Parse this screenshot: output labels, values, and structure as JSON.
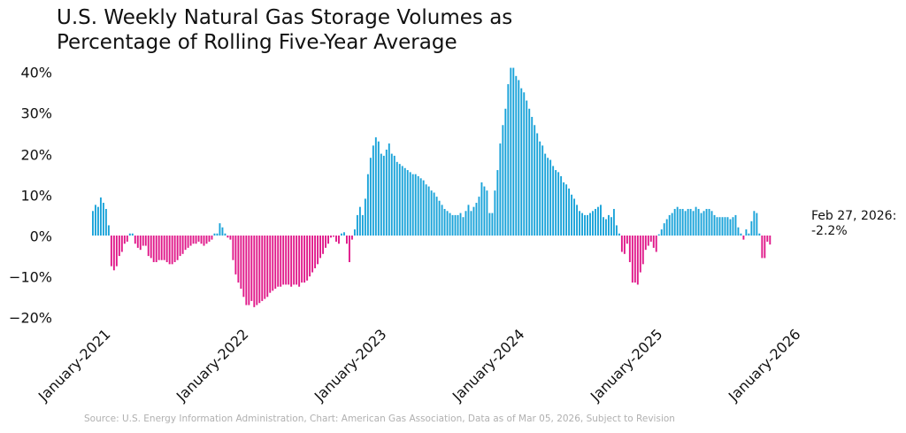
{
  "chart_data": {
    "type": "bar",
    "title": "U.S. Weekly Natural Gas Storage Volumes as Percentage of Rolling Five-Year Average",
    "title_lines": [
      "U.S. Weekly Natural Gas Storage Volumes as",
      "Percentage of Rolling Five-Year Average"
    ],
    "xlabel": "",
    "ylabel": "",
    "ylim": [
      -20,
      40
    ],
    "y_ticks": [
      40,
      30,
      20,
      10,
      0,
      -10,
      -20
    ],
    "y_tick_labels": [
      "40%",
      "30%",
      "20%",
      "10%",
      "0%",
      "−10%",
      "−20%"
    ],
    "x_tick_labels": [
      "January-2021",
      "January-2022",
      "January-2023",
      "January-2024",
      "January-2025",
      "January-2026"
    ],
    "x_start": "2021-01-01",
    "x_end": "2026-02-27",
    "frequency": "weekly",
    "grid": false,
    "colors": {
      "positive": "#1aa3d9",
      "negative": "#e0198a"
    },
    "series": [
      {
        "name": "Storage vs 5-yr avg (%)",
        "values": [
          6,
          7.5,
          7,
          9.3,
          8,
          6.5,
          2.5,
          -7.5,
          -8.5,
          -7.5,
          -5,
          -4,
          -2,
          -1.5,
          0.5,
          0.5,
          -2,
          -3,
          -3.5,
          -2.5,
          -2.5,
          -5,
          -5.5,
          -6.5,
          -6.5,
          -6,
          -6,
          -6,
          -6.5,
          -7,
          -7,
          -6.5,
          -6,
          -5,
          -4.5,
          -3.5,
          -3,
          -2.5,
          -2,
          -2,
          -1.5,
          -2,
          -2.5,
          -2,
          -1.5,
          -1,
          0.5,
          0.5,
          3,
          2,
          0.5,
          -0.5,
          -1,
          -6,
          -9.5,
          -11.5,
          -13,
          -15,
          -17,
          -17,
          -16,
          -17.5,
          -17,
          -16.5,
          -16,
          -15.5,
          -15,
          -14,
          -13.5,
          -13,
          -12.5,
          -12.5,
          -12,
          -12,
          -12,
          -12.5,
          -12,
          -12,
          -12.5,
          -11.5,
          -11.5,
          -11,
          -10,
          -9,
          -8,
          -7,
          -5.5,
          -4.5,
          -3,
          -2,
          -0.5,
          -0.3,
          -1.5,
          -2,
          0.5,
          0.8,
          -2,
          -6.5,
          -1,
          1.5,
          5,
          7,
          5,
          9,
          15,
          19,
          22,
          24,
          23,
          20,
          19.5,
          21,
          22.5,
          20,
          19.5,
          18,
          17.5,
          17,
          16.5,
          16,
          15.5,
          15,
          15,
          14.5,
          14,
          13.5,
          12.5,
          12,
          11,
          10.5,
          9.5,
          8.5,
          7.5,
          6.5,
          6,
          5.5,
          5,
          5,
          5,
          5.5,
          4.5,
          6,
          7.5,
          6,
          7,
          8,
          9.5,
          13,
          12,
          11,
          5.5,
          5.5,
          11,
          16,
          22.5,
          27,
          31,
          37,
          41,
          41,
          39,
          38,
          36,
          35,
          33,
          31,
          29,
          27,
          25,
          23,
          22,
          20,
          19,
          18.5,
          17,
          16,
          15.5,
          14.5,
          13,
          12.5,
          11.5,
          10,
          9,
          7.5,
          6,
          5.5,
          5,
          5,
          5.5,
          6,
          6.5,
          7,
          7.5,
          4.5,
          4,
          5,
          4.5,
          6.5,
          2.5,
          0.5,
          -4,
          -4.5,
          -2,
          -6.5,
          -11.5,
          -11.5,
          -12,
          -9,
          -7,
          -3.5,
          -2.5,
          -1.5,
          -3,
          -4,
          0.3,
          1.5,
          3,
          4,
          5,
          5.5,
          6.5,
          7,
          6.5,
          6.5,
          6,
          6.5,
          6.5,
          6,
          7,
          6.5,
          5.5,
          6,
          6.5,
          6.5,
          6,
          5,
          4.5,
          4.5,
          4.5,
          4.5,
          4.5,
          4,
          4.5,
          5,
          2,
          0.5,
          -1,
          1.5,
          0.5,
          3.5,
          6,
          5.5,
          0.5,
          -5.5,
          -5.5,
          -1.5,
          -2.2
        ]
      }
    ],
    "annotation": {
      "label_line1": "Feb 27, 2026:",
      "label_line2": "-2.2%",
      "date": "2026-02-27",
      "value": -2.2
    },
    "source": "Source: U.S. Energy Information Administration, Chart: American Gas Association, Data as of Mar 05, 2026, Subject to Revision"
  }
}
